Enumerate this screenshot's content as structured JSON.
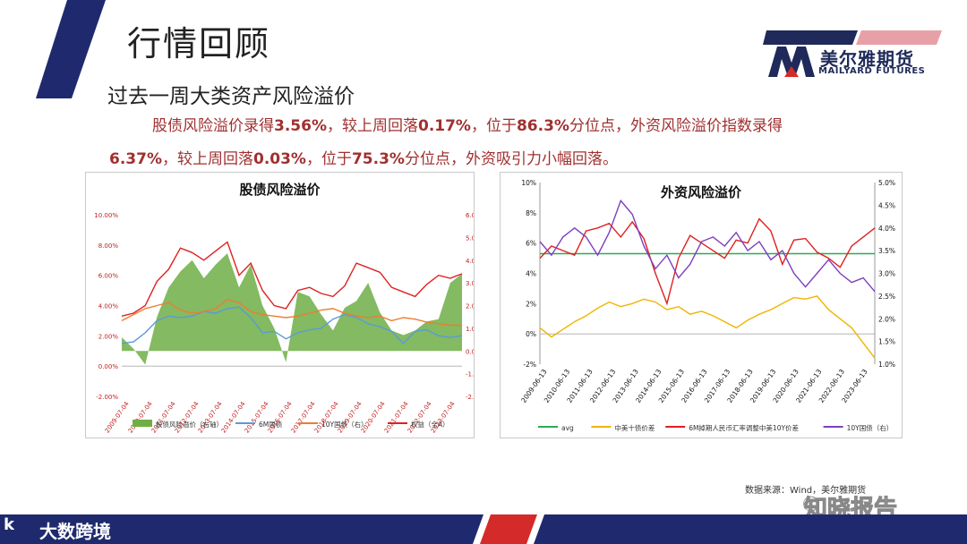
{
  "slide": {
    "title": "行情回顾",
    "subtitle": "过去一周大类资产风险溢价",
    "para1_a": "股债风险溢价录得",
    "para1_b": "3.56%",
    "para1_c": "，较上周回落",
    "para1_d": "0.17%",
    "para1_e": "，位于",
    "para1_f": "86.3%",
    "para1_g": "分位点，外资风险溢价指数录得",
    "para2_a": "6.37%",
    "para2_b": "，较上周回落",
    "para2_c": "0.03%",
    "para2_d": "，位于",
    "para2_e": "75.3%",
    "para2_f": "分位点，外资吸引力小幅回落。",
    "source": "数据来源：Wind，美尔雅期货"
  },
  "logo": {
    "cn": "美尔雅期货",
    "en": "MAILYARD FUTURES"
  },
  "watermarks": {
    "zhixiao": "知晓报告",
    "dashu": "大数跨境",
    "k": "k"
  },
  "colors": {
    "stripe_blue": "#1f2a6e",
    "stripe_red": "#d42a2a",
    "text_red": "#a0302f",
    "logo_blue": "#1f2a5a",
    "logo_pink": "#e8a0a8"
  },
  "chart_data": [
    {
      "type": "area",
      "title": "股债风险溢价",
      "left_axis": {
        "ticks": [
          "10.00%",
          "8.00%",
          "6.00%",
          "4.00%",
          "2.00%",
          "0.00%",
          "-2.00%"
        ],
        "ylim": [
          -2,
          10
        ]
      },
      "right_axis": {
        "ticks": [
          "6.00%",
          "5.00%",
          "4.00%",
          "3.00%",
          "2.00%",
          "1.00%",
          "0.00%",
          "-1.00%",
          "-2.00%"
        ],
        "ylim": [
          -2,
          6
        ]
      },
      "x_ticks": [
        "2009-07-04",
        "2010-07-04",
        "2011-07-04",
        "2012-07-04",
        "2013-07-04",
        "2014-07-04",
        "2015-07-04",
        "2016-07-04",
        "2017-07-04",
        "2018-07-04",
        "2019-07-04",
        "2020-07-04",
        "2021-07-04",
        "2022-07-04",
        "2023-07-04"
      ],
      "series": [
        {
          "name": "股债风险溢价（右轴）",
          "type": "area",
          "axis": "right",
          "color": "#6fae45",
          "values": [
            0.6,
            0.1,
            -0.6,
            1.5,
            2.8,
            3.5,
            4.0,
            3.2,
            3.8,
            4.3,
            2.8,
            3.8,
            2.0,
            1.0,
            -0.5,
            2.6,
            2.4,
            1.6,
            0.9,
            1.9,
            2.2,
            3.0,
            1.7,
            0.9,
            0.7,
            0.9,
            1.3,
            1.4,
            3.0,
            3.4
          ]
        },
        {
          "name": "6M国债",
          "type": "line",
          "axis": "left",
          "color": "#5b9bd5",
          "values": [
            1.5,
            1.6,
            2.2,
            3.0,
            3.3,
            3.2,
            3.3,
            3.6,
            3.5,
            3.8,
            3.9,
            3.2,
            2.2,
            2.3,
            1.8,
            2.2,
            2.4,
            2.5,
            3.1,
            3.4,
            3.2,
            2.8,
            2.6,
            2.3,
            1.5,
            2.3,
            2.4,
            2.0,
            1.9,
            2.0
          ]
        },
        {
          "name": "10Y国债（右）",
          "type": "line",
          "axis": "left",
          "color": "#ed7d31",
          "values": [
            3.0,
            3.4,
            3.8,
            4.0,
            4.2,
            3.7,
            3.5,
            3.6,
            3.8,
            4.4,
            4.2,
            3.6,
            3.4,
            3.3,
            3.2,
            3.3,
            3.5,
            3.7,
            3.8,
            3.5,
            3.3,
            3.2,
            3.3,
            3.0,
            3.2,
            3.1,
            2.9,
            2.8,
            2.7,
            2.7
          ]
        },
        {
          "name": "权益（全A）",
          "type": "line",
          "axis": "left",
          "color": "#e02020",
          "values": [
            3.3,
            3.5,
            4.0,
            5.6,
            6.4,
            7.8,
            7.5,
            7.0,
            7.6,
            8.2,
            6.0,
            6.8,
            5.0,
            4.0,
            3.8,
            5.0,
            5.2,
            4.8,
            4.6,
            5.3,
            6.8,
            6.5,
            6.2,
            5.2,
            4.9,
            4.6,
            5.4,
            6.0,
            5.8,
            6.1
          ]
        }
      ],
      "legend": "bottom"
    },
    {
      "type": "line",
      "title": "外资风险溢价",
      "left_axis": {
        "ticks": [
          "10%",
          "8%",
          "6%",
          "4%",
          "2%",
          "0%",
          "-2%"
        ],
        "ylim": [
          -2,
          10
        ]
      },
      "right_axis": {
        "ticks": [
          "5.0%",
          "4.5%",
          "4.0%",
          "3.5%",
          "3.0%",
          "2.5%",
          "2.0%",
          "1.5%",
          "1.0%"
        ],
        "ylim": [
          1.0,
          5.0
        ]
      },
      "x_ticks": [
        "2009-06-13",
        "2010-06-13",
        "2011-06-13",
        "2012-06-13",
        "2013-06-13",
        "2014-06-13",
        "2015-06-13",
        "2016-06-13",
        "2017-06-13",
        "2018-06-13",
        "2019-06-13",
        "2020-06-13",
        "2021-06-13",
        "2022-06-13",
        "2023-06-13"
      ],
      "series": [
        {
          "name": "avg",
          "type": "line",
          "axis": "left",
          "color": "#2eaa55",
          "values": [
            5.3,
            5.3
          ]
        },
        {
          "name": "中美十债价差",
          "type": "line",
          "axis": "left",
          "color": "#f0b400",
          "values": [
            0.4,
            -0.2,
            0.3,
            0.8,
            1.2,
            1.7,
            2.1,
            1.8,
            2.0,
            2.3,
            2.1,
            1.6,
            1.8,
            1.3,
            1.5,
            1.2,
            0.8,
            0.4,
            0.9,
            1.3,
            1.6,
            2.0,
            2.4,
            2.3,
            2.5,
            1.6,
            1.0,
            0.4,
            -0.6,
            -1.6
          ]
        },
        {
          "name": "6M掉期人民币汇率调整中美10Y价差",
          "type": "line",
          "axis": "left",
          "color": "#e02020",
          "values": [
            5.0,
            5.8,
            5.5,
            5.2,
            6.8,
            7.0,
            7.3,
            6.4,
            7.4,
            6.3,
            4.0,
            2.0,
            5.0,
            6.5,
            6.0,
            5.5,
            5.0,
            6.2,
            6.0,
            7.6,
            6.8,
            4.6,
            6.2,
            6.3,
            5.4,
            5.0,
            4.4,
            5.8,
            6.4,
            7.0
          ]
        },
        {
          "name": "10Y国债（右）",
          "type": "line",
          "axis": "right",
          "color": "#7e3fbf",
          "values": [
            3.7,
            3.4,
            3.8,
            4.0,
            3.8,
            3.4,
            3.9,
            4.6,
            4.3,
            3.6,
            3.1,
            3.4,
            2.9,
            3.2,
            3.7,
            3.8,
            3.6,
            3.9,
            3.5,
            3.7,
            3.3,
            3.5,
            3.0,
            2.7,
            3.0,
            3.3,
            3.0,
            2.8,
            2.9,
            2.6
          ]
        }
      ],
      "legend": "bottom"
    }
  ]
}
